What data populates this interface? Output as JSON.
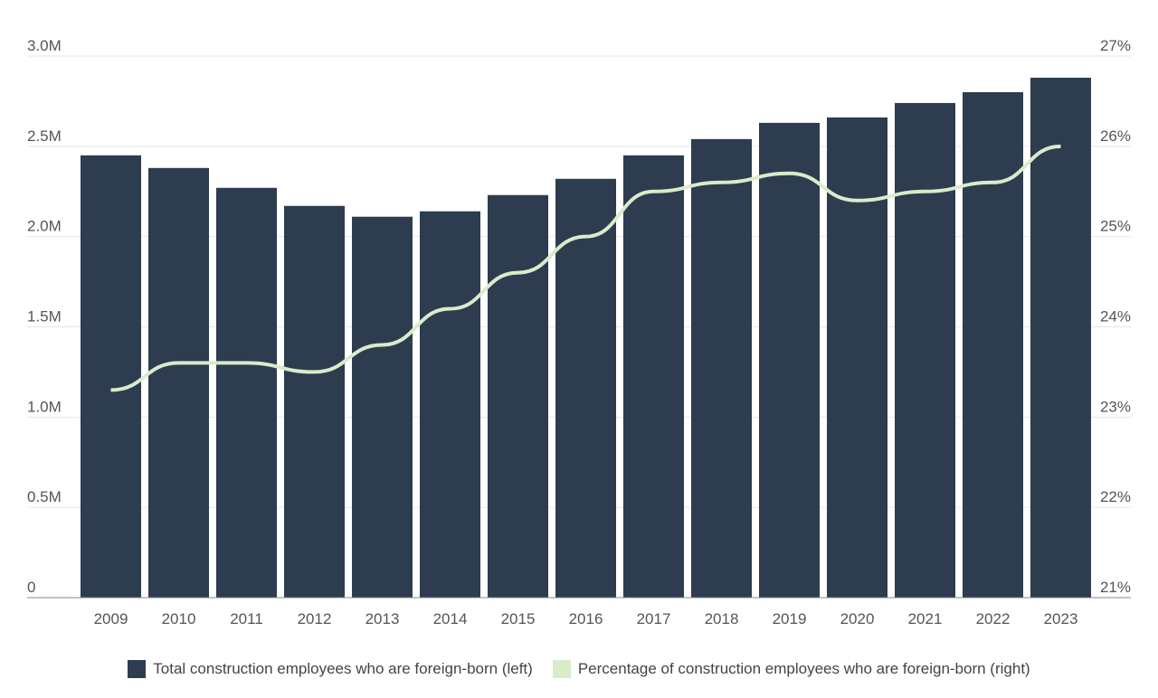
{
  "chart_data": {
    "type": "bar+line",
    "categories": [
      "2009",
      "2010",
      "2011",
      "2012",
      "2013",
      "2014",
      "2015",
      "2016",
      "2017",
      "2018",
      "2019",
      "2020",
      "2021",
      "2022",
      "2023"
    ],
    "series": [
      {
        "name": "Total construction employees who are foreign-born (left)",
        "type": "bar",
        "axis": "left",
        "color": "#2d3c4f",
        "values": [
          2450000,
          2380000,
          2270000,
          2170000,
          2110000,
          2140000,
          2230000,
          2320000,
          2450000,
          2540000,
          2630000,
          2660000,
          2740000,
          2800000,
          2880000
        ]
      },
      {
        "name": "Percentage of construction employees who are foreign-born (right)",
        "type": "line",
        "axis": "right",
        "color": "#d9ecca",
        "values": [
          23.3,
          23.6,
          23.6,
          23.5,
          23.8,
          24.2,
          24.6,
          25.0,
          25.5,
          25.6,
          25.7,
          25.4,
          25.5,
          25.6,
          26.0
        ]
      }
    ],
    "left_axis": {
      "ylim": [
        0,
        3000000
      ],
      "ticks": [
        0,
        500000,
        1000000,
        1500000,
        2000000,
        2500000,
        3000000
      ],
      "tick_labels": [
        "0",
        "0.5M",
        "1.0M",
        "1.5M",
        "2.0M",
        "2.5M",
        "3.0M"
      ]
    },
    "right_axis": {
      "ylim": [
        21,
        27
      ],
      "ticks": [
        21,
        22,
        23,
        24,
        25,
        26,
        27
      ],
      "tick_labels": [
        "21%",
        "22%",
        "23%",
        "24%",
        "25%",
        "26%",
        "27%"
      ]
    },
    "grid": true,
    "legend_position": "bottom"
  }
}
